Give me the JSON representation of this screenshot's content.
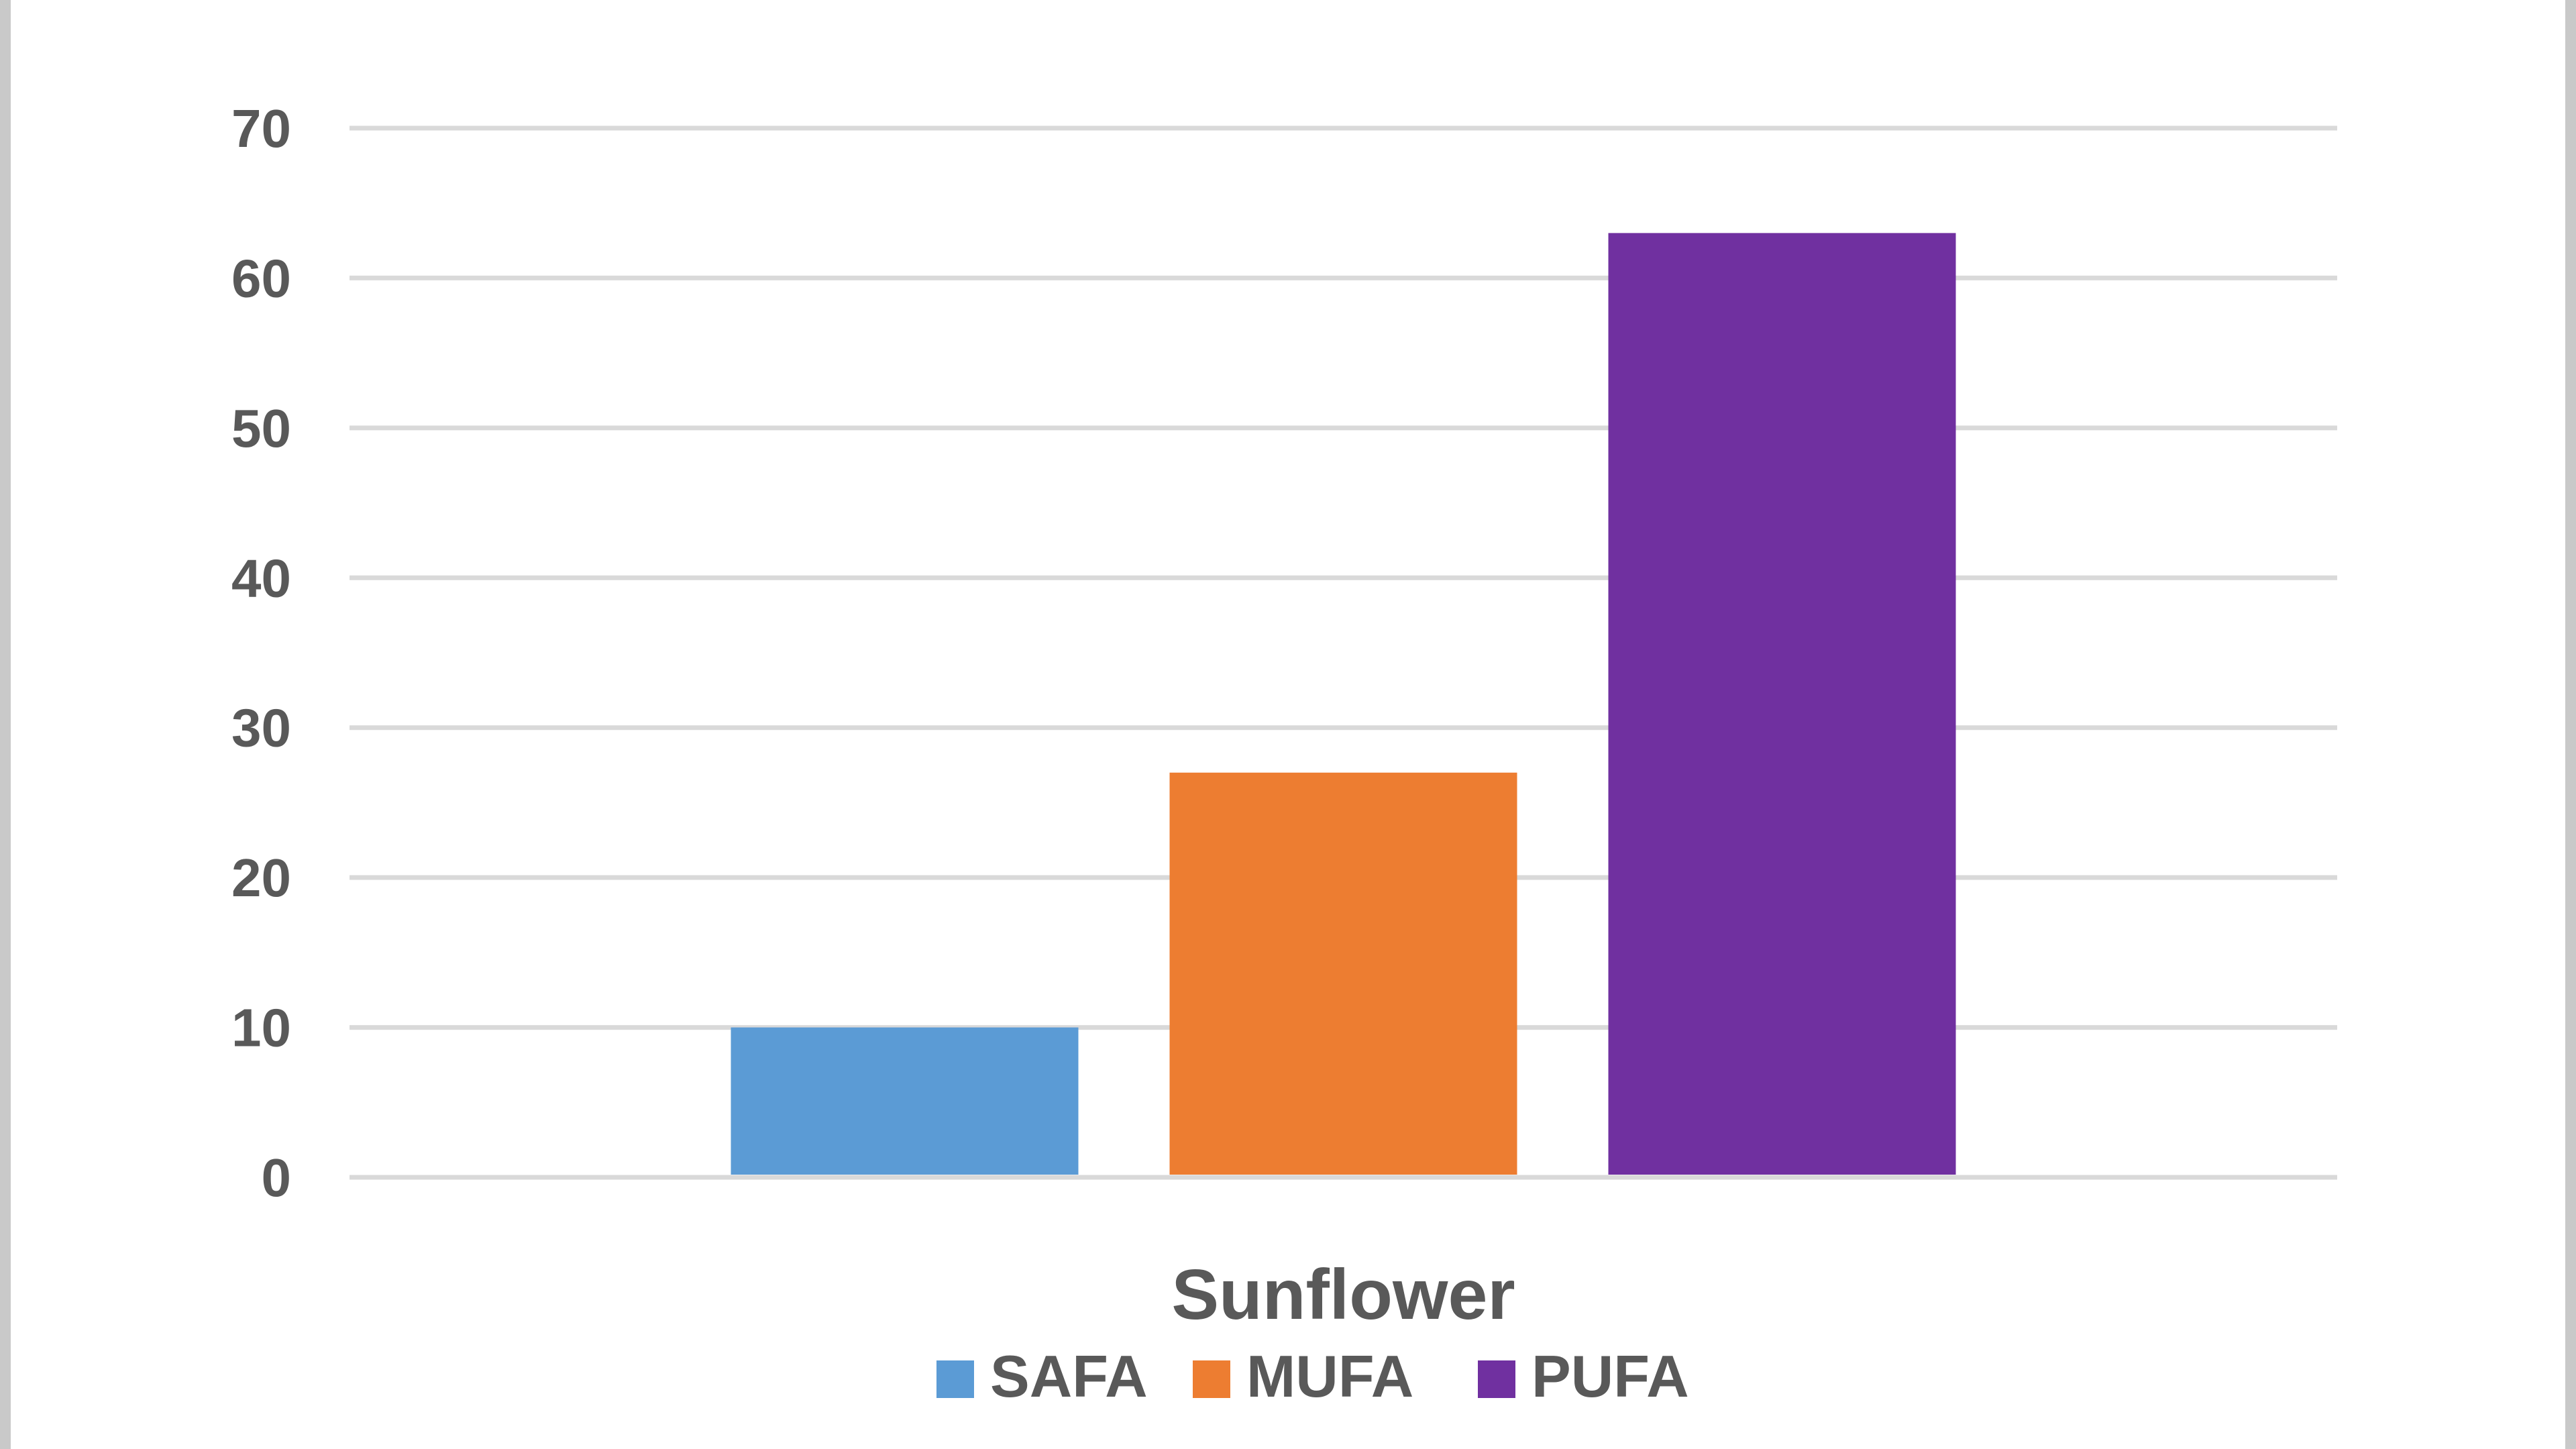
{
  "chart_data": {
    "type": "bar",
    "categories": [
      "Sunflower"
    ],
    "series": [
      {
        "name": "SAFA",
        "values": [
          10
        ],
        "color": "#5b9bd5"
      },
      {
        "name": "MUFA",
        "values": [
          27
        ],
        "color": "#ed7d31"
      },
      {
        "name": "PUFA",
        "values": [
          63
        ],
        "color": "#7030a0"
      }
    ],
    "yticks": [
      "0",
      "10",
      "20",
      "30",
      "40",
      "50",
      "60",
      "70"
    ],
    "ylim": [
      0,
      70
    ],
    "grid": true,
    "legend_position": "bottom",
    "colors": {
      "gridline": "#d9d9d9",
      "text": "#595959",
      "border": "#c9c9c9"
    }
  }
}
